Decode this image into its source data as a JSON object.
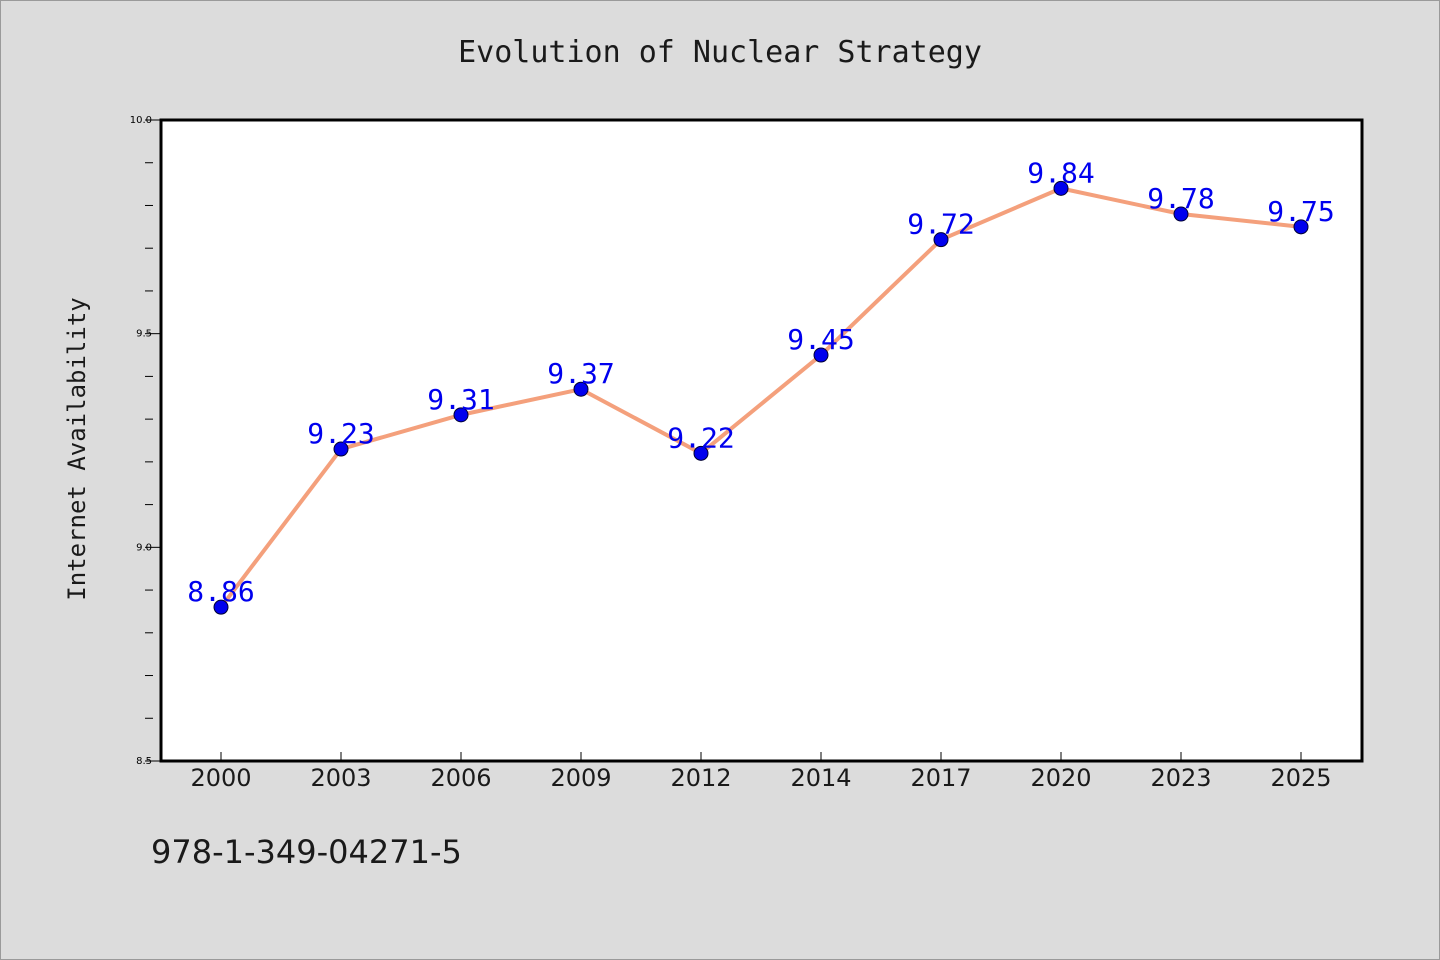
{
  "chart_data": {
    "type": "line",
    "title": "Evolution of Nuclear Strategy",
    "xlabel": "",
    "ylabel": "Internet Availability",
    "categories": [
      "2000",
      "2003",
      "2006",
      "2009",
      "2012",
      "2014",
      "2017",
      "2020",
      "2023",
      "2025"
    ],
    "series": [
      {
        "values": [
          8.86,
          9.23,
          9.31,
          9.37,
          9.22,
          9.45,
          9.72,
          9.84,
          9.78,
          9.75
        ],
        "labels": [
          "8.86",
          "9.23",
          "9.31",
          "9.37",
          "9.22",
          "9.45",
          "9.72",
          "9.84",
          "9.78",
          "9.75"
        ],
        "line_color": "#f4a07c",
        "marker_color": "#0000ee",
        "label_color": "#0000ee"
      }
    ],
    "ylim": [
      8.5,
      10.0
    ],
    "yticks": [
      "8.5",
      "9.0",
      "9.5",
      "10.0"
    ],
    "grid": false,
    "legend": "none"
  },
  "footer": {
    "isbn": "978-1-349-04271-5"
  },
  "colors": {
    "background": "#dcdcdc",
    "plot_area": "#ffffff",
    "axes": "#000000"
  }
}
